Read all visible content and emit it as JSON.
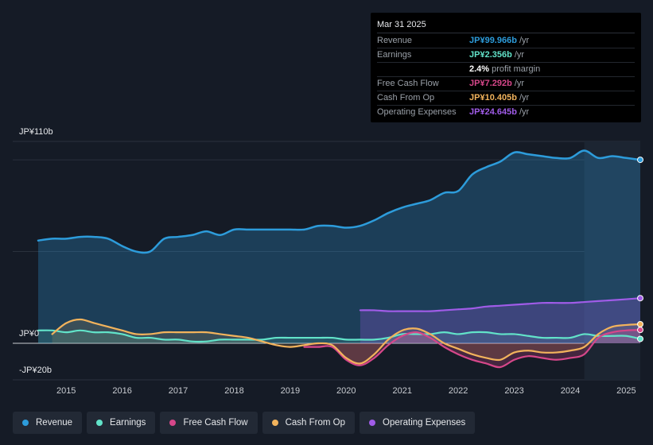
{
  "tooltip": {
    "date": "Mar 31 2025",
    "rows": [
      {
        "label": "Revenue",
        "value": "JP¥99.966b",
        "unit": "/yr",
        "color": "#2d9cdb"
      },
      {
        "label": "Earnings",
        "value": "JP¥2.356b",
        "unit": "/yr",
        "color": "#62e3c9"
      },
      {
        "label": "",
        "value": "2.4%",
        "unit": "profit margin",
        "color": "#ffffff"
      },
      {
        "label": "Free Cash Flow",
        "value": "JP¥7.292b",
        "unit": "/yr",
        "color": "#d6478a"
      },
      {
        "label": "Cash From Op",
        "value": "JP¥10.405b",
        "unit": "/yr",
        "color": "#f2b35c"
      },
      {
        "label": "Operating Expenses",
        "value": "JP¥24.645b",
        "unit": "/yr",
        "color": "#a05ce8"
      }
    ]
  },
  "legend": [
    {
      "label": "Revenue",
      "color": "#2d9cdb"
    },
    {
      "label": "Earnings",
      "color": "#62e3c9"
    },
    {
      "label": "Free Cash Flow",
      "color": "#d6478a"
    },
    {
      "label": "Cash From Op",
      "color": "#f2b35c"
    },
    {
      "label": "Operating Expenses",
      "color": "#a05ce8"
    }
  ],
  "chart_data": {
    "type": "area",
    "title": "",
    "xlabel": "",
    "ylabel": "",
    "unit": "JP¥ billions",
    "y_tick_labels": [
      "JP¥110b",
      "JP¥0",
      "-JP¥20b"
    ],
    "ylim": [
      -20,
      110
    ],
    "xlim": [
      2014.5,
      2025.25
    ],
    "x_ticks": [
      2015,
      2016,
      2017,
      2018,
      2019,
      2020,
      2021,
      2022,
      2023,
      2024,
      2025
    ],
    "x_tick_labels": [
      "2015",
      "2016",
      "2017",
      "2018",
      "2019",
      "2020",
      "2021",
      "2022",
      "2023",
      "2024",
      "2025"
    ],
    "forecast_shade_start": 2024.25,
    "series": [
      {
        "name": "Revenue",
        "color": "#2d9cdb",
        "x": [
          2014.5,
          2014.75,
          2015.0,
          2015.25,
          2015.5,
          2015.75,
          2016.0,
          2016.25,
          2016.5,
          2016.75,
          2017.0,
          2017.25,
          2017.5,
          2017.75,
          2018.0,
          2018.25,
          2018.5,
          2018.75,
          2019.0,
          2019.25,
          2019.5,
          2019.75,
          2020.0,
          2020.25,
          2020.5,
          2020.75,
          2021.0,
          2021.25,
          2021.5,
          2021.75,
          2022.0,
          2022.25,
          2022.5,
          2022.75,
          2023.0,
          2023.25,
          2023.5,
          2023.75,
          2024.0,
          2024.25,
          2024.5,
          2024.75,
          2025.0,
          2025.25
        ],
        "values": [
          56,
          57,
          57,
          58,
          58,
          57,
          53,
          50,
          50,
          57,
          58,
          59,
          61,
          59,
          62,
          62,
          62,
          62,
          62,
          62,
          64,
          64,
          63,
          64,
          67,
          71,
          74,
          76,
          78,
          82,
          83,
          92,
          96,
          99,
          104,
          103,
          102,
          101,
          101,
          105,
          101,
          102,
          101,
          100
        ]
      },
      {
        "name": "Earnings",
        "color": "#62e3c9",
        "x": [
          2014.5,
          2014.75,
          2015.0,
          2015.25,
          2015.5,
          2015.75,
          2016.0,
          2016.25,
          2016.5,
          2016.75,
          2017.0,
          2017.25,
          2017.5,
          2017.75,
          2018.0,
          2018.25,
          2018.5,
          2018.75,
          2019.0,
          2019.25,
          2019.5,
          2019.75,
          2020.0,
          2020.25,
          2020.5,
          2020.75,
          2021.0,
          2021.25,
          2021.5,
          2021.75,
          2022.0,
          2022.25,
          2022.5,
          2022.75,
          2023.0,
          2023.25,
          2023.5,
          2023.75,
          2024.0,
          2024.25,
          2024.5,
          2024.75,
          2025.0,
          2025.25
        ],
        "values": [
          7,
          7,
          6,
          7,
          6,
          6,
          5,
          3,
          3,
          2,
          2,
          1,
          1,
          2,
          2,
          2,
          2,
          3,
          3,
          3,
          3,
          3,
          2,
          2,
          2,
          3,
          5,
          5,
          5,
          6,
          5,
          6,
          6,
          5,
          5,
          4,
          3,
          3,
          3,
          5,
          4,
          4,
          4,
          2.4
        ]
      },
      {
        "name": "Free Cash Flow",
        "color": "#d6478a",
        "x": [
          2019.25,
          2019.5,
          2019.75,
          2020.0,
          2020.25,
          2020.5,
          2020.75,
          2021.0,
          2021.25,
          2021.5,
          2021.75,
          2022.0,
          2022.25,
          2022.5,
          2022.75,
          2023.0,
          2023.25,
          2023.5,
          2023.75,
          2024.0,
          2024.25,
          2024.5,
          2024.75,
          2025.0,
          2025.25
        ],
        "values": [
          -2,
          -2,
          -2,
          -9,
          -12,
          -8,
          -1,
          4,
          6,
          3,
          -2,
          -6,
          -9,
          -11,
          -13,
          -9,
          -7,
          -8,
          -9,
          -8,
          -6,
          3,
          6,
          7,
          7.3
        ]
      },
      {
        "name": "Cash From Op",
        "color": "#f2b35c",
        "x": [
          2014.75,
          2015.0,
          2015.25,
          2015.5,
          2015.75,
          2016.0,
          2016.25,
          2016.5,
          2016.75,
          2017.0,
          2017.25,
          2017.5,
          2017.75,
          2018.0,
          2018.25,
          2018.5,
          2018.75,
          2019.0,
          2019.25,
          2019.5,
          2019.75,
          2020.0,
          2020.25,
          2020.5,
          2020.75,
          2021.0,
          2021.25,
          2021.5,
          2021.75,
          2022.0,
          2022.25,
          2022.5,
          2022.75,
          2023.0,
          2023.25,
          2023.5,
          2023.75,
          2024.0,
          2024.25,
          2024.5,
          2024.75,
          2025.0,
          2025.25
        ],
        "values": [
          5,
          11,
          13,
          11,
          9,
          7,
          5,
          5,
          6,
          6,
          6,
          6,
          5,
          4,
          3,
          1,
          -1,
          -2,
          -1,
          0,
          -1,
          -8,
          -11,
          -6,
          2,
          7,
          8,
          5,
          0,
          -3,
          -6,
          -8,
          -9,
          -5,
          -4,
          -5,
          -5,
          -4,
          -2,
          5,
          9,
          10,
          10.4
        ]
      },
      {
        "name": "Operating Expenses",
        "color": "#a05ce8",
        "x": [
          2020.25,
          2020.5,
          2020.75,
          2021.0,
          2021.25,
          2021.5,
          2021.75,
          2022.0,
          2022.25,
          2022.5,
          2022.75,
          2023.0,
          2023.25,
          2023.5,
          2023.75,
          2024.0,
          2024.25,
          2024.5,
          2024.75,
          2025.0,
          2025.25
        ],
        "values": [
          18,
          18,
          17.5,
          17.5,
          17.5,
          17.5,
          18,
          18.5,
          19,
          20,
          20.5,
          21,
          21.5,
          22,
          22,
          22,
          22.5,
          23,
          23.5,
          24,
          24.6
        ]
      }
    ]
  }
}
